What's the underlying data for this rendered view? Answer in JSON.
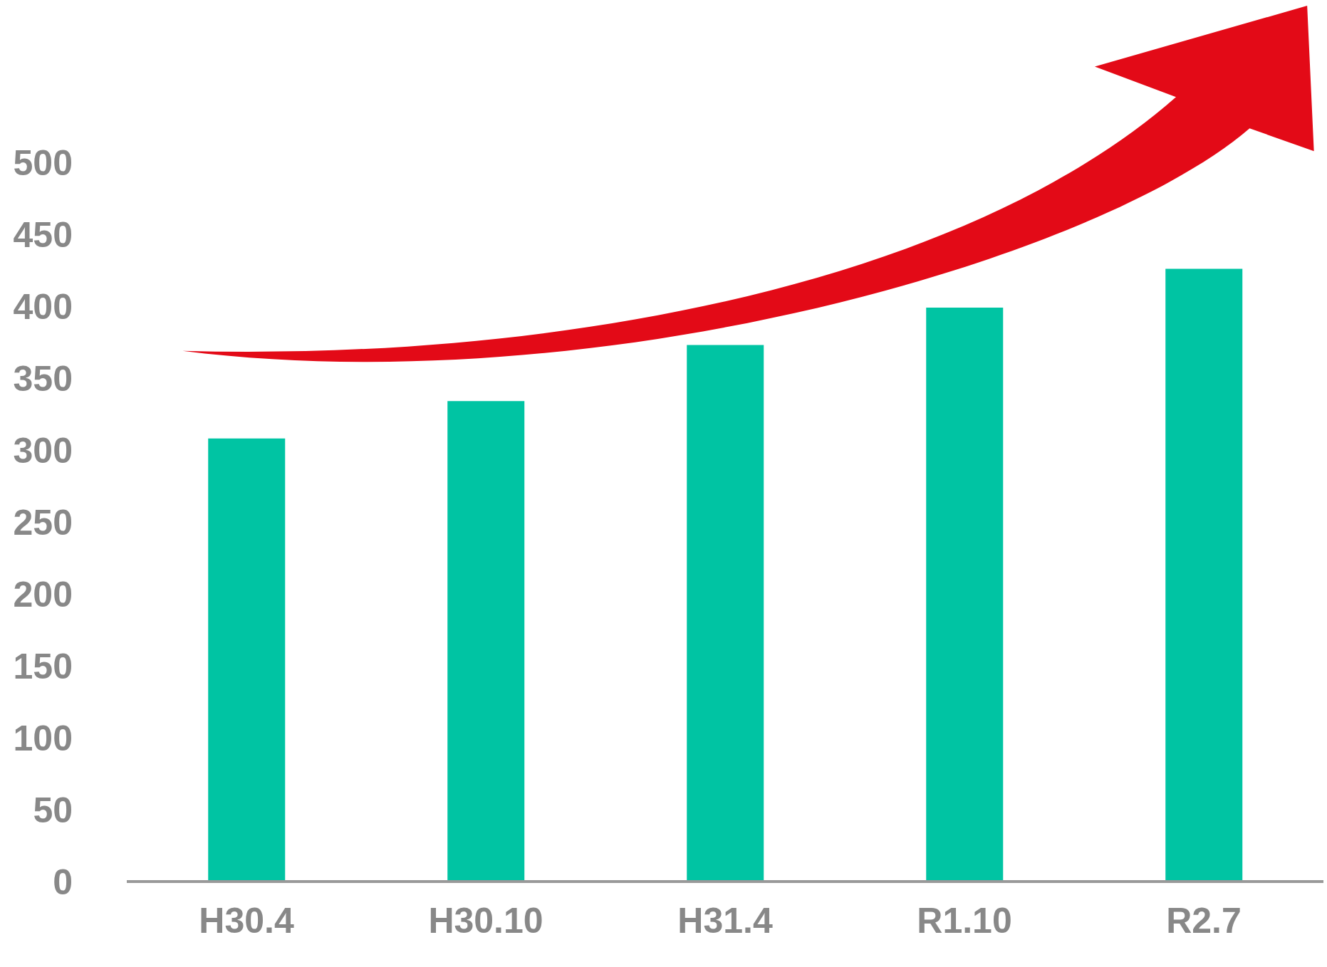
{
  "chart_data": {
    "type": "bar",
    "categories": [
      "H30.4",
      "H30.10",
      "H31.4",
      "R1.10",
      "R2.7"
    ],
    "values": [
      308,
      334,
      373,
      399,
      426
    ],
    "color": "#00c4a3",
    "ylim": [
      0,
      500
    ],
    "yticks": [
      0,
      50,
      100,
      150,
      200,
      250,
      300,
      350,
      400,
      450,
      500
    ],
    "grid": false,
    "legend": false
  }
}
